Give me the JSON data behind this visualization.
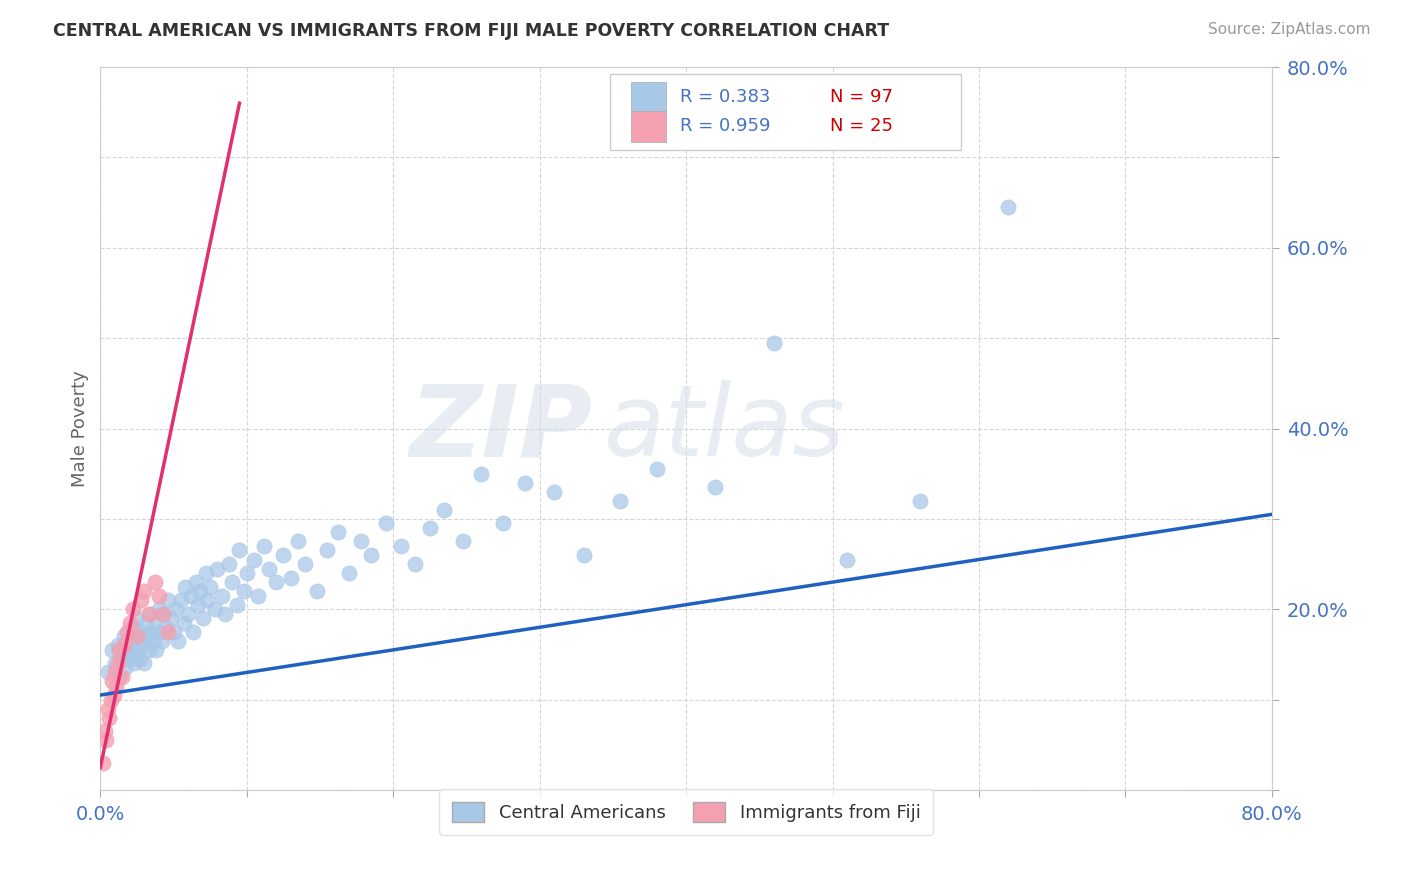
{
  "title": "CENTRAL AMERICAN VS IMMIGRANTS FROM FIJI MALE POVERTY CORRELATION CHART",
  "source": "Source: ZipAtlas.com",
  "ylabel": "Male Poverty",
  "xlim": [
    0,
    0.8
  ],
  "ylim": [
    0,
    0.8
  ],
  "blue_color": "#a8c8e8",
  "pink_color": "#f4a0b0",
  "blue_line_color": "#2060c0",
  "pink_line_color": "#e03070",
  "series1_label": "Central Americans",
  "series2_label": "Immigrants from Fiji",
  "watermark_zip": "ZIP",
  "watermark_atlas": "atlas",
  "blue_x": [
    0.005,
    0.008,
    0.01,
    0.012,
    0.013,
    0.015,
    0.016,
    0.017,
    0.018,
    0.019,
    0.02,
    0.021,
    0.022,
    0.022,
    0.023,
    0.024,
    0.025,
    0.025,
    0.026,
    0.027,
    0.028,
    0.029,
    0.03,
    0.031,
    0.032,
    0.033,
    0.034,
    0.035,
    0.036,
    0.037,
    0.038,
    0.04,
    0.041,
    0.042,
    0.043,
    0.045,
    0.046,
    0.048,
    0.05,
    0.052,
    0.053,
    0.055,
    0.057,
    0.058,
    0.06,
    0.062,
    0.063,
    0.065,
    0.067,
    0.068,
    0.07,
    0.072,
    0.073,
    0.075,
    0.078,
    0.08,
    0.083,
    0.085,
    0.088,
    0.09,
    0.093,
    0.095,
    0.098,
    0.1,
    0.105,
    0.108,
    0.112,
    0.115,
    0.12,
    0.125,
    0.13,
    0.135,
    0.14,
    0.148,
    0.155,
    0.162,
    0.17,
    0.178,
    0.185,
    0.195,
    0.205,
    0.215,
    0.225,
    0.235,
    0.248,
    0.26,
    0.275,
    0.29,
    0.31,
    0.33,
    0.355,
    0.38,
    0.42,
    0.46,
    0.51,
    0.56,
    0.62
  ],
  "blue_y": [
    0.13,
    0.155,
    0.14,
    0.16,
    0.125,
    0.145,
    0.17,
    0.135,
    0.16,
    0.15,
    0.145,
    0.165,
    0.155,
    0.18,
    0.14,
    0.17,
    0.15,
    0.19,
    0.165,
    0.145,
    0.175,
    0.16,
    0.14,
    0.185,
    0.17,
    0.155,
    0.195,
    0.175,
    0.165,
    0.185,
    0.155,
    0.2,
    0.175,
    0.165,
    0.195,
    0.18,
    0.21,
    0.19,
    0.175,
    0.2,
    0.165,
    0.21,
    0.185,
    0.225,
    0.195,
    0.215,
    0.175,
    0.23,
    0.205,
    0.22,
    0.19,
    0.24,
    0.21,
    0.225,
    0.2,
    0.245,
    0.215,
    0.195,
    0.25,
    0.23,
    0.205,
    0.265,
    0.22,
    0.24,
    0.255,
    0.215,
    0.27,
    0.245,
    0.23,
    0.26,
    0.235,
    0.275,
    0.25,
    0.22,
    0.265,
    0.285,
    0.24,
    0.275,
    0.26,
    0.295,
    0.27,
    0.25,
    0.29,
    0.31,
    0.275,
    0.35,
    0.295,
    0.34,
    0.33,
    0.26,
    0.32,
    0.355,
    0.335,
    0.495,
    0.255,
    0.32,
    0.645
  ],
  "pink_x": [
    0.002,
    0.003,
    0.004,
    0.005,
    0.006,
    0.007,
    0.008,
    0.009,
    0.01,
    0.011,
    0.012,
    0.013,
    0.015,
    0.016,
    0.018,
    0.02,
    0.022,
    0.025,
    0.028,
    0.03,
    0.033,
    0.037,
    0.04,
    0.043,
    0.046
  ],
  "pink_y": [
    0.03,
    0.065,
    0.055,
    0.09,
    0.08,
    0.1,
    0.12,
    0.105,
    0.13,
    0.115,
    0.14,
    0.155,
    0.125,
    0.16,
    0.175,
    0.185,
    0.2,
    0.17,
    0.21,
    0.22,
    0.195,
    0.23,
    0.215,
    0.195,
    0.175
  ],
  "blue_line_x0": 0.0,
  "blue_line_x1": 0.8,
  "blue_line_y0": 0.105,
  "blue_line_y1": 0.305,
  "pink_line_x0": 0.0,
  "pink_line_x1": 0.095,
  "pink_line_y0": 0.025,
  "pink_line_y1": 0.76
}
